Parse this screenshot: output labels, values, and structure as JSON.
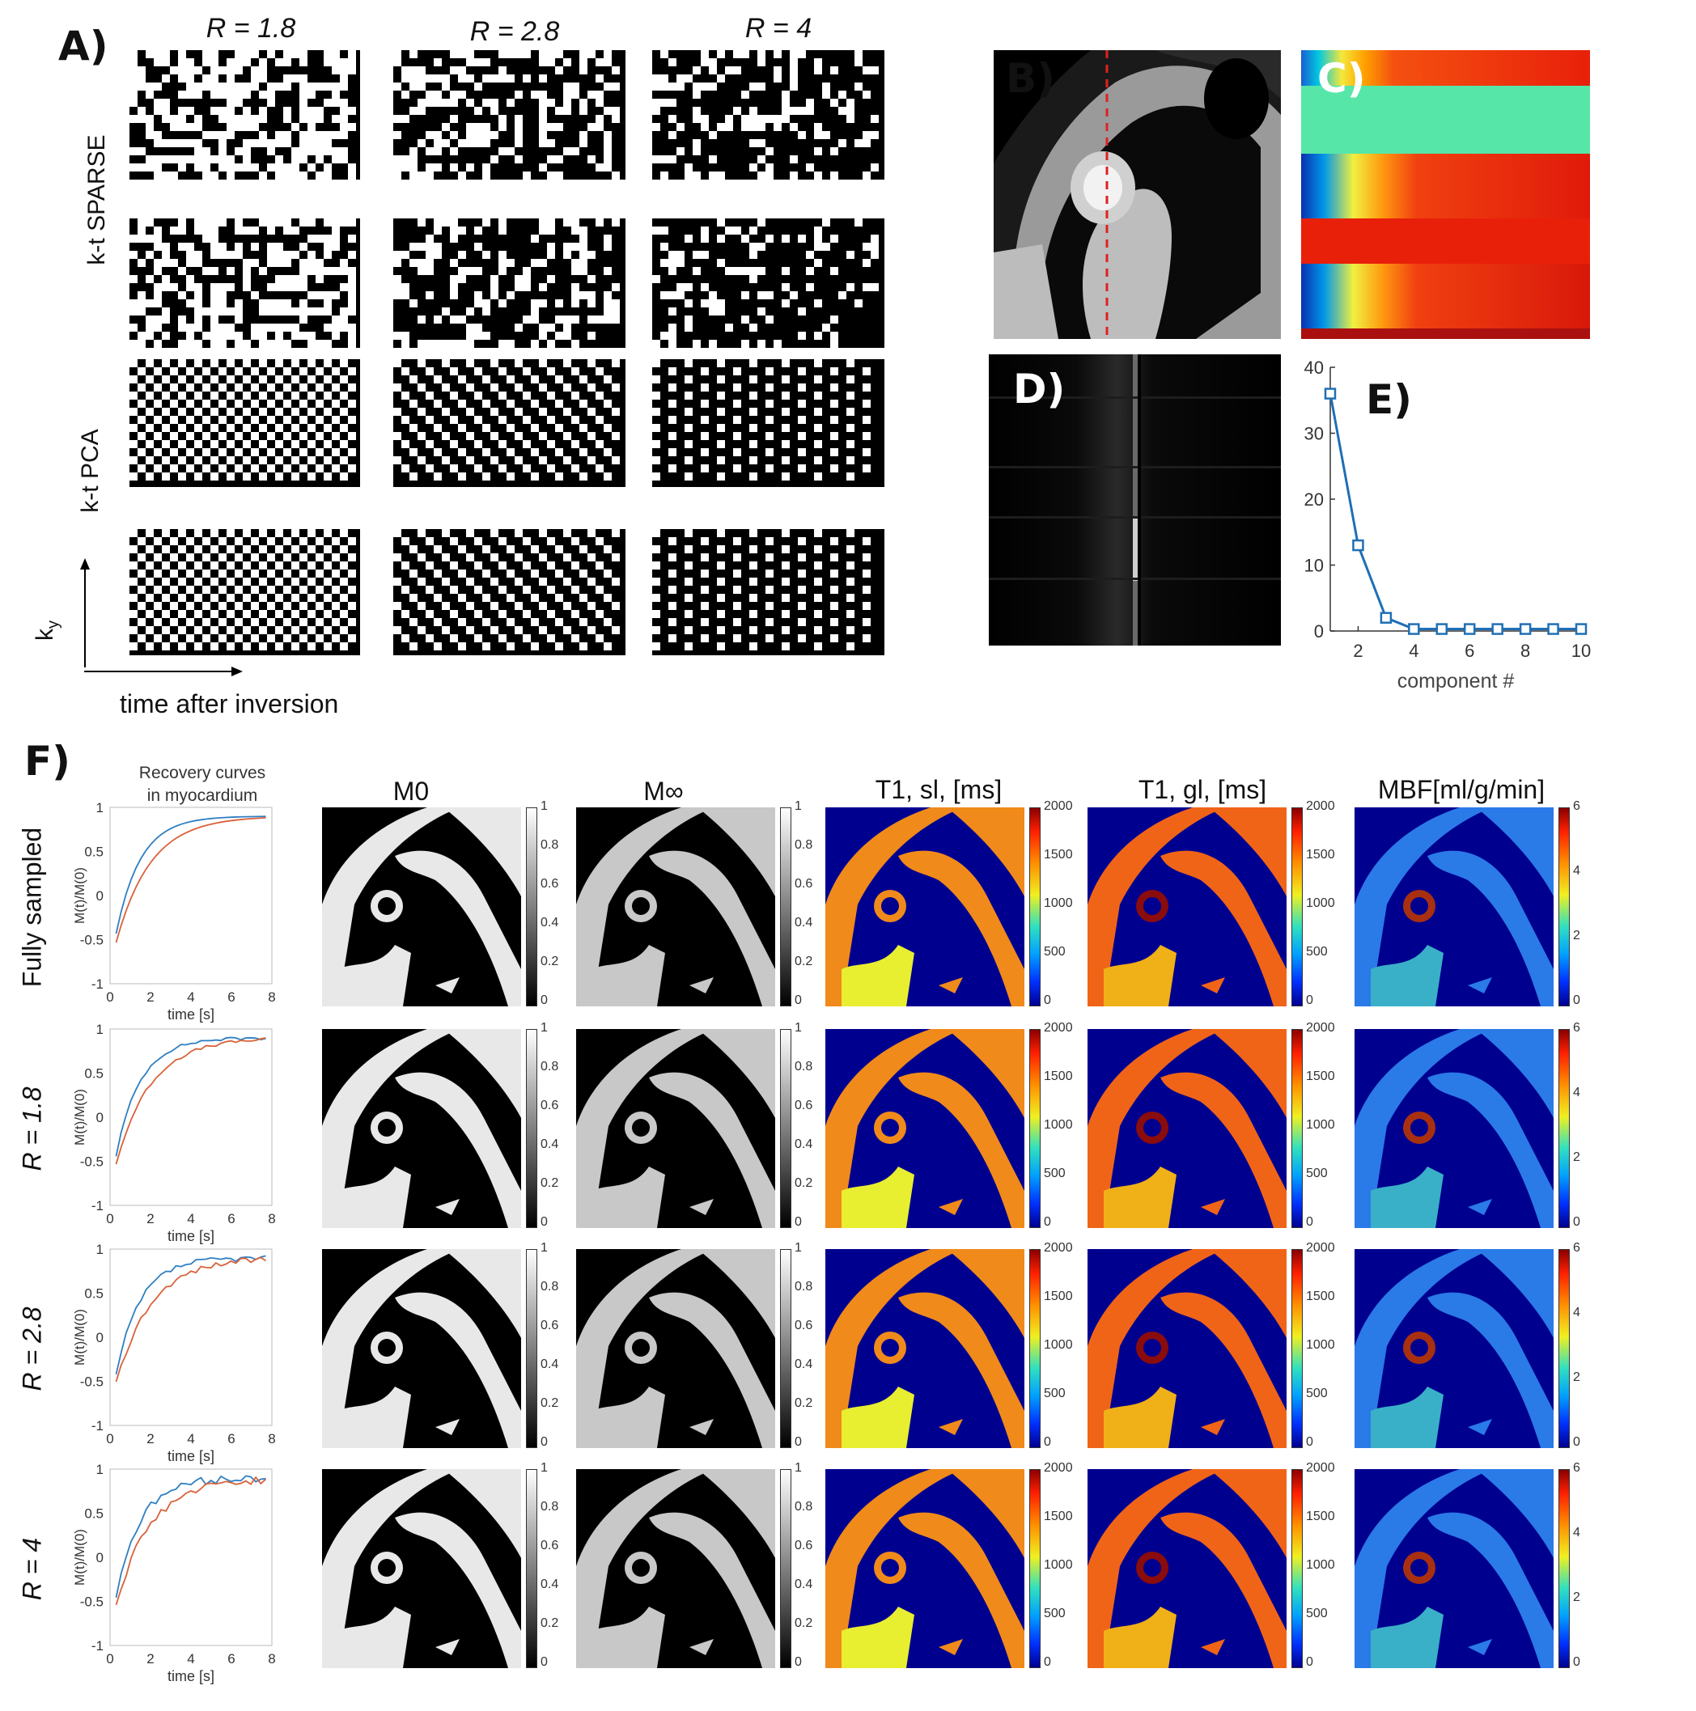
{
  "panels": {
    "A": "A)",
    "B": "B)",
    "C": "C)",
    "D": "D)",
    "E": "E)",
    "F": "F)"
  },
  "panelA": {
    "col_prefix": "R",
    "columns": [
      "R = 1.8",
      "R = 2.8",
      "R = 4"
    ],
    "row_labels": [
      "k-t SPARSE",
      "k-t PCA"
    ],
    "axis_y": "k",
    "axis_y_sub": "y",
    "axis_x": "time after inversion"
  },
  "panelE": {
    "chart_data": {
      "type": "line",
      "x": [
        1,
        2,
        3,
        4,
        5,
        6,
        7,
        8,
        9,
        10
      ],
      "y": [
        36,
        13,
        2,
        0.3,
        0.3,
        0.3,
        0.3,
        0.3,
        0.3,
        0.3
      ],
      "xlabel": "component #",
      "xlim": [
        1,
        10
      ],
      "ylim": [
        0,
        40
      ],
      "xticks": [
        "2",
        "4",
        "6",
        "8",
        "10"
      ],
      "yticks": [
        "0",
        "10",
        "20",
        "30",
        "40"
      ],
      "color": "#1f6fb5"
    }
  },
  "panelF": {
    "curve_title_1": "Recovery curves",
    "curve_title_2": "in myocardium",
    "map_titles": [
      "M0",
      "M∞",
      "T1, sl, [ms]",
      "T1, gl, [ms]",
      "MBF[ml/g/min]"
    ],
    "row_labels": [
      "Fully sampled",
      "R = 1.8",
      "R = 2.8",
      "R = 4"
    ],
    "curve_ylabel": "M(t)/M(0)",
    "curve_xlabel": "time [s]",
    "curve_yticks": [
      "1",
      "0.5",
      "0",
      "-0.5",
      "-1"
    ],
    "curve_xticks": [
      "0",
      "2",
      "4",
      "6",
      "8"
    ],
    "gray_cb_ticks": [
      "1",
      "0.8",
      "0.6",
      "0.4",
      "0.2",
      "0"
    ],
    "t1_cb_ticks": [
      "2000",
      "1500",
      "1000",
      "500",
      "0"
    ],
    "mbf_cb_ticks": [
      "6",
      "4",
      "2",
      "0"
    ],
    "colors": {
      "blue_curve": "#2f7fc1",
      "red_curve": "#d9623a",
      "map_bg": "#00008f"
    }
  }
}
